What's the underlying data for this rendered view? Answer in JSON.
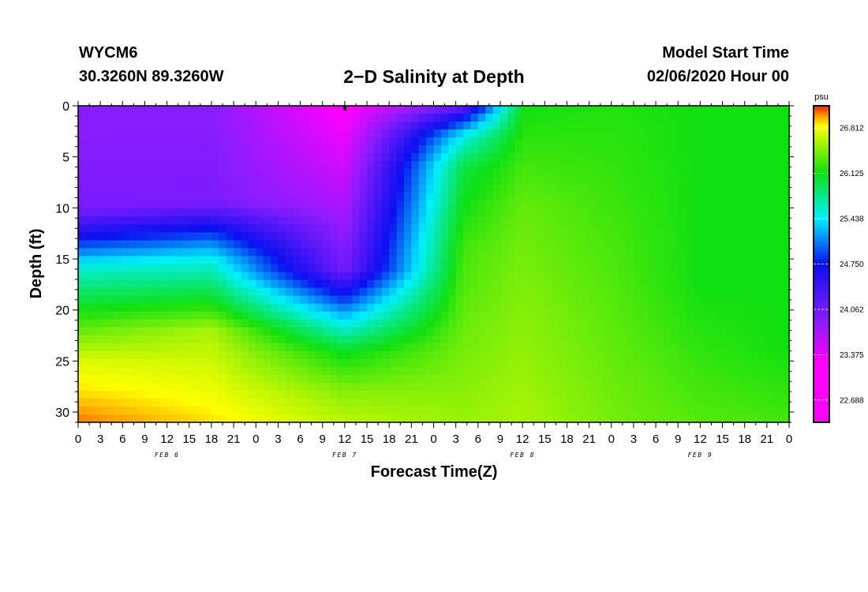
{
  "header": {
    "station": "WYCM6",
    "coords": "30.3260N 89.3260W",
    "title": "2−D Salinity at Depth",
    "start_label": "Model Start Time",
    "start_value": "02/06/2020 Hour 00"
  },
  "chart_data": {
    "type": "heatmap",
    "title": "2−D Salinity at Depth",
    "xlabel": "Forecast Time(Z)",
    "ylabel": "Depth (ft)",
    "units": "psu",
    "x_tick_labels": [
      "0",
      "3",
      "6",
      "9",
      "12",
      "15",
      "18",
      "21",
      "0",
      "3",
      "6",
      "9",
      "12",
      "15",
      "18",
      "21",
      "0",
      "3",
      "6",
      "9",
      "12",
      "15",
      "18",
      "21",
      "0",
      "3",
      "6",
      "9",
      "12",
      "15",
      "18",
      "21",
      "0"
    ],
    "x_range_hours": [
      0,
      96
    ],
    "date_labels": [
      {
        "label": "FEB 6",
        "hour": 12
      },
      {
        "label": "FEB 7",
        "hour": 36
      },
      {
        "label": "FEB 8",
        "hour": 60
      },
      {
        "label": "FEB 9",
        "hour": 84
      }
    ],
    "y_ticks": [
      0,
      5,
      10,
      15,
      20,
      25,
      30
    ],
    "y_range": [
      0,
      31
    ],
    "y_inverted": true,
    "colorbar_ticks": [
      "26.812",
      "26.125",
      "25.438",
      "24.750",
      "24.062",
      "23.375",
      "22.688"
    ],
    "colorbar_range": [
      22.35,
      27.15
    ],
    "colors": {
      "magenta": "#ff00ff",
      "purple": "#8a1cff",
      "blue": "#0a10f0",
      "cyan": "#00f0ff",
      "green": "#10e010",
      "yellow": "#ffff00",
      "orange": "#ff9d00",
      "red": "#ff2000"
    },
    "salinity_profile_keyframes": [
      {
        "hour": 0,
        "depth_ft": [
          0,
          10,
          13,
          16,
          20,
          25,
          31
        ],
        "psu": [
          23.9,
          24.0,
          24.75,
          25.6,
          26.15,
          26.75,
          27.05
        ]
      },
      {
        "hour": 18,
        "depth_ft": [
          0,
          9.5,
          12,
          15,
          19,
          22,
          31
        ],
        "psu": [
          23.9,
          24.0,
          24.75,
          25.5,
          26.1,
          26.6,
          26.9
        ]
      },
      {
        "hour": 36,
        "depth_ft": [
          0,
          16,
          18.5,
          21,
          24,
          28,
          31
        ],
        "psu": [
          23.2,
          24.05,
          24.75,
          25.4,
          26.1,
          26.5,
          26.65
        ]
      },
      {
        "hour": 52,
        "depth_ft": [
          0,
          1.2,
          3,
          6,
          14,
          31
        ],
        "psu": [
          24.1,
          24.75,
          25.5,
          26.0,
          26.3,
          26.55
        ]
      },
      {
        "hour": 60,
        "depth_ft": [
          0,
          10,
          31
        ],
        "psu": [
          26.15,
          26.4,
          26.6
        ]
      },
      {
        "hour": 72,
        "depth_ft": [
          0,
          12,
          31
        ],
        "psu": [
          26.2,
          26.3,
          26.45
        ]
      },
      {
        "hour": 84,
        "depth_ft": [
          0,
          18,
          31
        ],
        "psu": [
          26.15,
          26.15,
          26.35
        ]
      },
      {
        "hour": 96,
        "depth_ft": [
          0,
          24,
          31
        ],
        "psu": [
          26.15,
          26.15,
          26.3
        ]
      }
    ],
    "marker": {
      "hour": 36,
      "depth_ft": 0
    }
  }
}
